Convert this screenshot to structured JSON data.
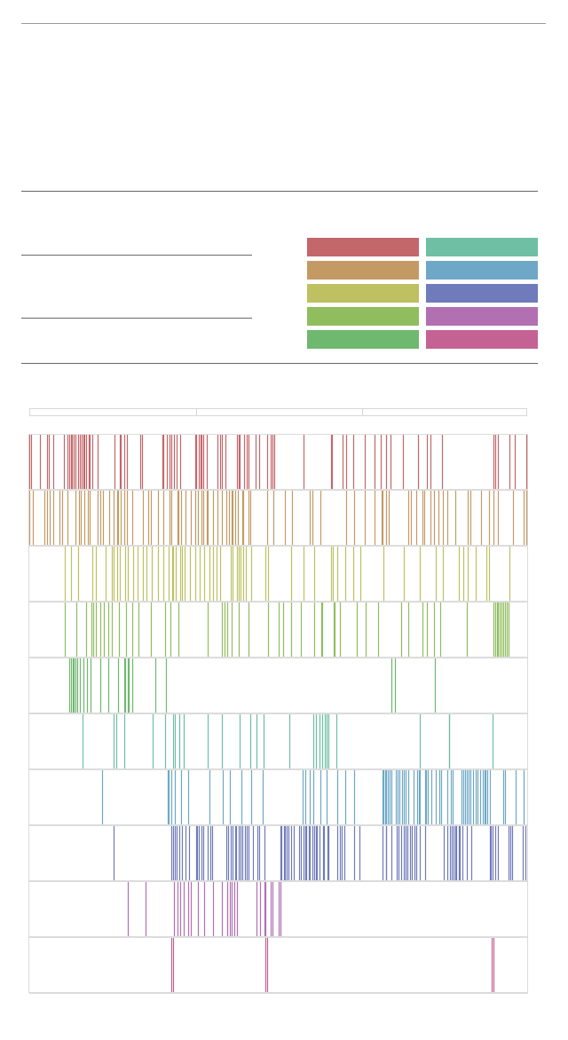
{
  "chart_data": {
    "type": "barcode",
    "x_range": [
      0,
      1000
    ],
    "x_ticks": [
      333,
      666
    ],
    "series": [
      {
        "color": "#c4676a",
        "events": [
          0,
          4,
          22,
          36,
          39,
          49,
          69,
          77,
          80,
          83,
          86,
          90,
          93,
          98,
          101,
          105,
          108,
          111,
          114,
          119,
          121,
          126,
          137,
          172,
          181,
          183,
          191,
          196,
          222,
          227,
          268,
          270,
          276,
          282,
          286,
          291,
          296,
          303,
          333,
          335,
          340,
          344,
          346,
          350,
          356,
          378,
          384,
          386,
          394,
          418,
          420,
          423,
          432,
          436,
          440,
          454,
          461,
          477,
          485,
          488,
          492,
          550,
          606,
          608,
          630,
          637,
          651,
          674,
          693,
          705,
          717,
          725,
          751,
          781,
          798,
          806,
          829,
          933,
          936,
          941,
          964,
          975,
          999
        ]
      },
      {
        "color": "#c49a64",
        "events": [
          0,
          7,
          30,
          35,
          41,
          48,
          61,
          66,
          76,
          93,
          100,
          104,
          110,
          117,
          121,
          138,
          142,
          148,
          160,
          169,
          177,
          178,
          183,
          191,
          196,
          206,
          229,
          238,
          245,
          259,
          270,
          281,
          286,
          297,
          299,
          305,
          314,
          324,
          334,
          339,
          346,
          349,
          356,
          359,
          369,
          378,
          387,
          396,
          401,
          406,
          409,
          414,
          419,
          428,
          430,
          440,
          444,
          477,
          490,
          514,
          528,
          563,
          568,
          585,
          637,
          653,
          674,
          693,
          707,
          710,
          717,
          722,
          762,
          766,
          778,
          790,
          793,
          805,
          812,
          821,
          830,
          839,
          855,
          880,
          886,
          907,
          924,
          933,
          942,
          972,
          993,
          998
        ]
      },
      {
        "color": "#bfc061",
        "events": [
          71,
          83,
          98,
          126,
          133,
          154,
          165,
          170,
          177,
          181,
          193,
          198,
          208,
          217,
          228,
          236,
          246,
          259,
          269,
          279,
          287,
          289,
          294,
          303,
          307,
          312,
          323,
          334,
          343,
          352,
          361,
          369,
          377,
          383,
          405,
          409,
          418,
          420,
          424,
          429,
          435,
          445,
          474,
          479,
          526,
          551,
          573,
          606,
          609,
          619,
          635,
          650,
          665,
          711,
          752,
          784,
          816,
          831,
          862,
          872,
          881,
          897,
          918,
          924,
          965
        ]
      },
      {
        "color": "#90bd5e",
        "events": [
          72,
          95,
          114,
          125,
          129,
          133,
          142,
          149,
          158,
          166,
          180,
          194,
          206,
          220,
          245,
          272,
          283,
          300,
          359,
          386,
          392,
          398,
          406,
          420,
          441,
          480,
          500,
          510,
          525,
          546,
          572,
          587,
          589,
          611,
          613,
          623,
          657,
          675,
          701,
          747,
          761,
          790,
          798,
          813,
          825,
          879,
          932,
          936,
          939,
          942,
          945,
          948,
          952,
          955,
          959,
          963
        ]
      },
      {
        "color": "#6fb86f",
        "events": [
          81,
          84,
          87,
          90,
          93,
          97,
          101,
          108,
          116,
          123,
          143,
          159,
          179,
          190,
          192,
          197,
          200,
          206,
          253,
          275,
          728,
          734,
          814
        ]
      },
      {
        "color": "#6fbfa4",
        "events": [
          107,
          170,
          174,
          190,
          247,
          273,
          289,
          292,
          302,
          310,
          359,
          387,
          422,
          444,
          457,
          471,
          523,
          570,
          576,
          583,
          589,
          594,
          597,
          601,
          617,
          784,
          843,
          844,
          931
        ]
      },
      {
        "color": "#6ea8c6",
        "events": [
          146,
          278,
          279,
          286,
          292,
          304,
          319,
          362,
          388,
          403,
          426,
          445,
          468,
          549,
          554,
          564,
          570,
          584,
          597,
          619,
          635,
          652,
          709,
          711,
          714,
          717,
          721,
          723,
          727,
          737,
          740,
          744,
          749,
          753,
          756,
          761,
          771,
          779,
          782,
          785,
          795,
          797,
          800,
          808,
          816,
          824,
          827,
          839,
          846,
          850,
          868,
          871,
          876,
          879,
          883,
          886,
          892,
          896,
          900,
          905,
          910,
          914,
          917,
          920,
          926,
          951,
          955,
          977,
          992
        ]
      },
      {
        "color": "#6f7bba",
        "events": [
          169,
          285,
          289,
          292,
          296,
          301,
          306,
          313,
          320,
          335,
          337,
          341,
          346,
          349,
          358,
          364,
          368,
          396,
          399,
          404,
          408,
          413,
          416,
          420,
          424,
          428,
          433,
          437,
          440,
          450,
          459,
          461,
          473,
          504,
          507,
          511,
          514,
          517,
          520,
          525,
          532,
          542,
          546,
          550,
          554,
          557,
          561,
          564,
          568,
          572,
          575,
          578,
          582,
          590,
          592,
          599,
          601,
          619,
          623,
          628,
          633,
          652,
          663,
          710,
          716,
          717,
          727,
          738,
          741,
          747,
          752,
          756,
          760,
          765,
          769,
          774,
          778,
          785,
          795,
          832,
          839,
          845,
          848,
          852,
          855,
          858,
          862,
          865,
          870,
          878,
          888,
          925,
          927,
          931,
          935,
          941,
          962,
          966,
          969,
          991,
          997
        ]
      },
      {
        "color": "#b270b2",
        "events": [
          198,
          233,
          291,
          298,
          303,
          310,
          319,
          325,
          338,
          351,
          369,
          387,
          397,
          403,
          407,
          411,
          417,
          456,
          463,
          472,
          474,
          484,
          488,
          500,
          505
        ]
      },
      {
        "color": "#c46393",
        "events": [
          286,
          289,
          474,
          477,
          929,
          932
        ]
      }
    ]
  }
}
